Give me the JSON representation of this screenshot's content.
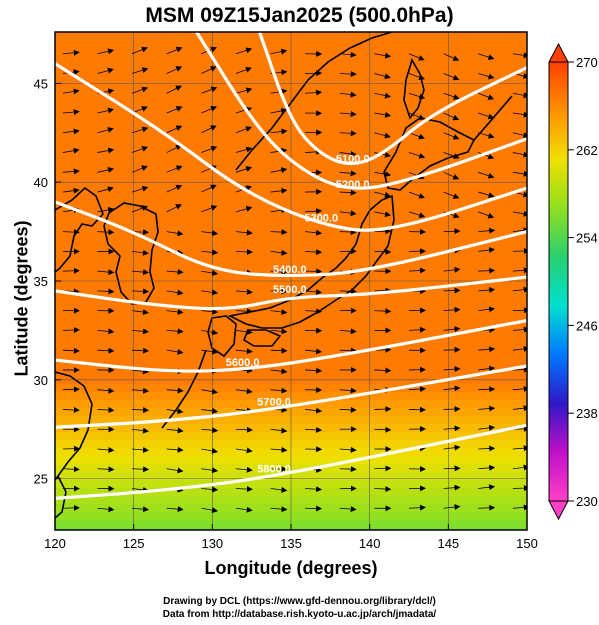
{
  "title": "MSM 09Z15Jan2025 (500.0hPa)",
  "footer": {
    "line1": "Drawing by DCL (https://www.gfd-dennou.org/library/dcl/)",
    "line2": "Data from http://database.rish.kyoto-u.ac.jp/arch/jmadata/"
  },
  "chart_data": {
    "type": "heatmap",
    "xlabel": "Longitude (degrees)",
    "ylabel": "Latitude  (degrees)",
    "xlim": [
      120,
      150
    ],
    "ylim": [
      22.4,
      47.6
    ],
    "x_ticks": [
      "120",
      "125",
      "130",
      "135",
      "140",
      "145",
      "150"
    ],
    "y_ticks": [
      "25",
      "30",
      "35",
      "40",
      "45"
    ],
    "grid": true,
    "colorbar": {
      "min": 230,
      "max": 270,
      "ticks": [
        "230",
        "238",
        "246",
        "254",
        "262",
        "270"
      ],
      "colors": [
        "#ff40c8",
        "#c010c8",
        "#3018c8",
        "#0078ff",
        "#00e0d0",
        "#28d070",
        "#90e020",
        "#f0e000",
        "#ff9000",
        "#ff4000"
      ]
    },
    "contours": [
      {
        "label": "5100.0",
        "points": [
          [
            133,
            47.6
          ],
          [
            135,
            43
          ],
          [
            137,
            41.3
          ],
          [
            139,
            40.8
          ],
          [
            141,
            41.5
          ],
          [
            144,
            43.5
          ],
          [
            150,
            45.8
          ]
        ]
      },
      {
        "label": "5200.0",
        "points": [
          [
            129,
            47.6
          ],
          [
            133,
            42.5
          ],
          [
            136,
            40.4
          ],
          [
            139,
            39.5
          ],
          [
            143,
            40.2
          ],
          [
            150,
            42.2
          ]
        ]
      },
      {
        "label": "5300.0",
        "points": [
          [
            120,
            46
          ],
          [
            127,
            42.5
          ],
          [
            132,
            39.5
          ],
          [
            137,
            37.8
          ],
          [
            141,
            37.4
          ],
          [
            150,
            39.7
          ]
        ]
      },
      {
        "label": "5400.0",
        "points": [
          [
            120,
            39
          ],
          [
            125,
            37.5
          ],
          [
            130,
            35.5
          ],
          [
            135,
            35.2
          ],
          [
            140,
            35.5
          ],
          [
            150,
            37.5
          ]
        ]
      },
      {
        "label": "5500.0",
        "points": [
          [
            120,
            34.5
          ],
          [
            126,
            33.8
          ],
          [
            131,
            33.5
          ],
          [
            135,
            34.2
          ],
          [
            140,
            34.3
          ],
          [
            150,
            35.2
          ]
        ]
      },
      {
        "label": "5600.0",
        "points": [
          [
            120,
            31
          ],
          [
            127,
            30.4
          ],
          [
            132,
            30.5
          ],
          [
            138,
            31.2
          ],
          [
            150,
            33
          ]
        ]
      },
      {
        "label": "5700.0",
        "points": [
          [
            120,
            27.6
          ],
          [
            127,
            27.9
          ],
          [
            134,
            28.5
          ],
          [
            150,
            30.7
          ]
        ]
      },
      {
        "label": "5800.0",
        "points": [
          [
            120,
            24
          ],
          [
            127,
            24.4
          ],
          [
            134,
            25.1
          ],
          [
            150,
            27.7
          ]
        ]
      }
    ]
  }
}
